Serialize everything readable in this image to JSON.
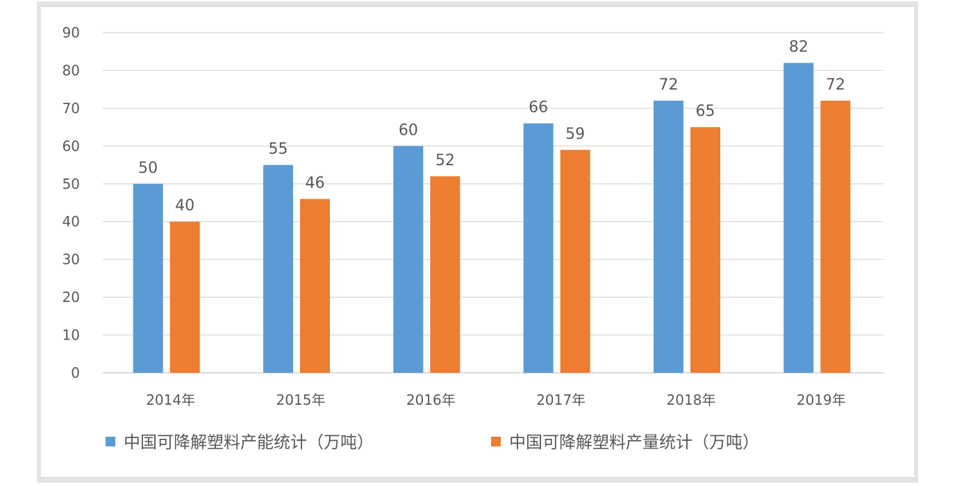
{
  "chart_data": {
    "type": "bar",
    "title": "",
    "xlabel": "",
    "ylabel": "",
    "categories": [
      "2014年",
      "2015年",
      "2016年",
      "2017年",
      "2018年",
      "2019年"
    ],
    "series": [
      {
        "name": "中国可降解塑料产能统计（万吨）",
        "values": [
          50,
          55,
          60,
          66,
          72,
          82
        ],
        "color": "#5b9bd5"
      },
      {
        "name": "中国可降解塑料产量统计（万吨）",
        "values": [
          40,
          46,
          52,
          59,
          65,
          72
        ],
        "color": "#ed7d31"
      }
    ],
    "ylim": [
      0,
      90
    ],
    "yticks": [
      0,
      10,
      20,
      30,
      40,
      50,
      60,
      70,
      80,
      90
    ],
    "grid": true,
    "data_labels": true,
    "legend_position": "bottom"
  }
}
